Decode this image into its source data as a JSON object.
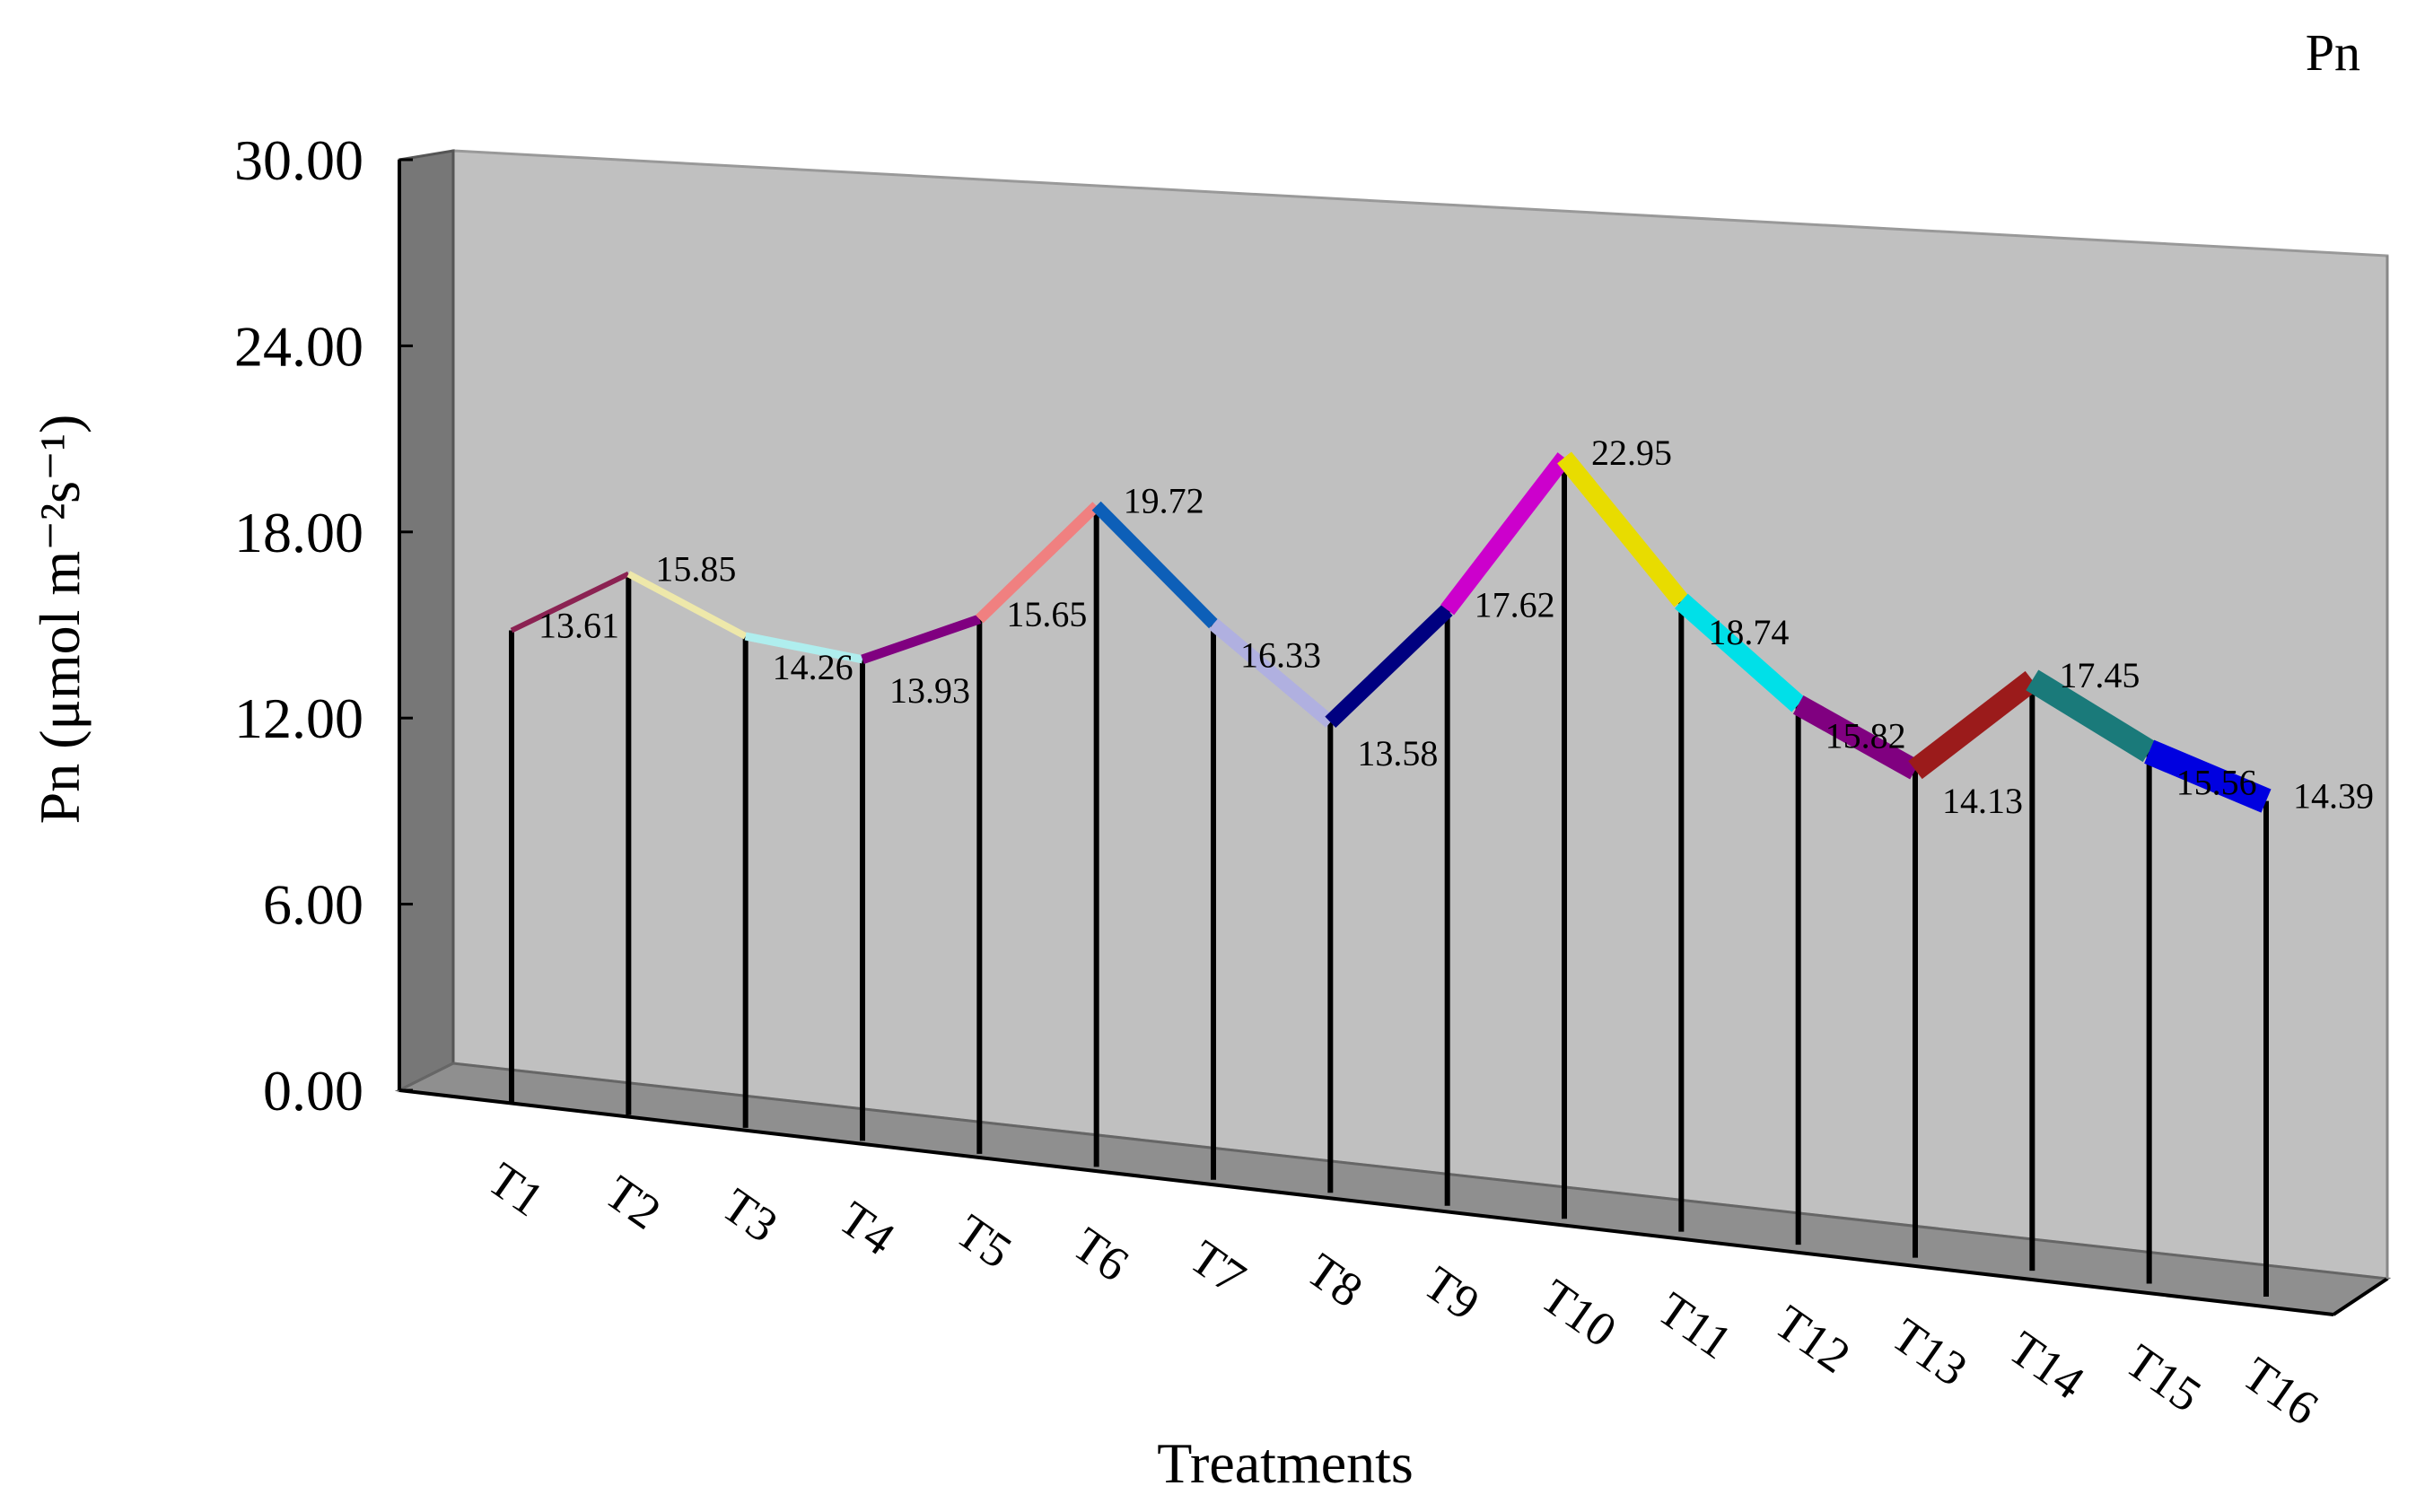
{
  "chart_data": {
    "type": "line",
    "title": "",
    "legend": "Pn",
    "legend_position": "top-right",
    "xlabel": "Treatments",
    "ylabel": "Pn (μmol m⁻²s⁻¹)",
    "ylim": [
      0,
      30
    ],
    "yticks": [
      "0.00",
      "6.00",
      "12.00",
      "18.00",
      "24.00",
      "30.00"
    ],
    "categories": [
      "T1",
      "T2",
      "T3",
      "T4",
      "T5",
      "T6",
      "T7",
      "T8",
      "T9",
      "T10",
      "T11",
      "T12",
      "T13",
      "T14",
      "T15",
      "T16"
    ],
    "series": [
      {
        "name": "Pn",
        "values": [
          13.61,
          15.85,
          14.26,
          13.93,
          15.65,
          19.72,
          16.33,
          13.58,
          17.62,
          22.95,
          18.74,
          15.82,
          14.13,
          17.45,
          15.56,
          14.39
        ],
        "labels": [
          "13.61",
          "15.85",
          "14.26",
          "13.93",
          "15.65",
          "19.72",
          "16.33",
          "13.58",
          "17.62",
          "22.95",
          "18.74",
          "15.82",
          "14.13",
          "17.45",
          "15.56",
          "14.39"
        ]
      }
    ],
    "segment_colors": [
      "#8B2252",
      "#EEE8AA",
      "#AFEEEE",
      "#800080",
      "#F08080",
      "#0D5FB8",
      "#B0B0E0",
      "#000080",
      "#CC00CC",
      "#E8DC00",
      "#00E0E8",
      "#800080",
      "#9B1B1B",
      "#1A7A7A",
      "#0000E0"
    ],
    "grid": false,
    "style": "3d"
  }
}
